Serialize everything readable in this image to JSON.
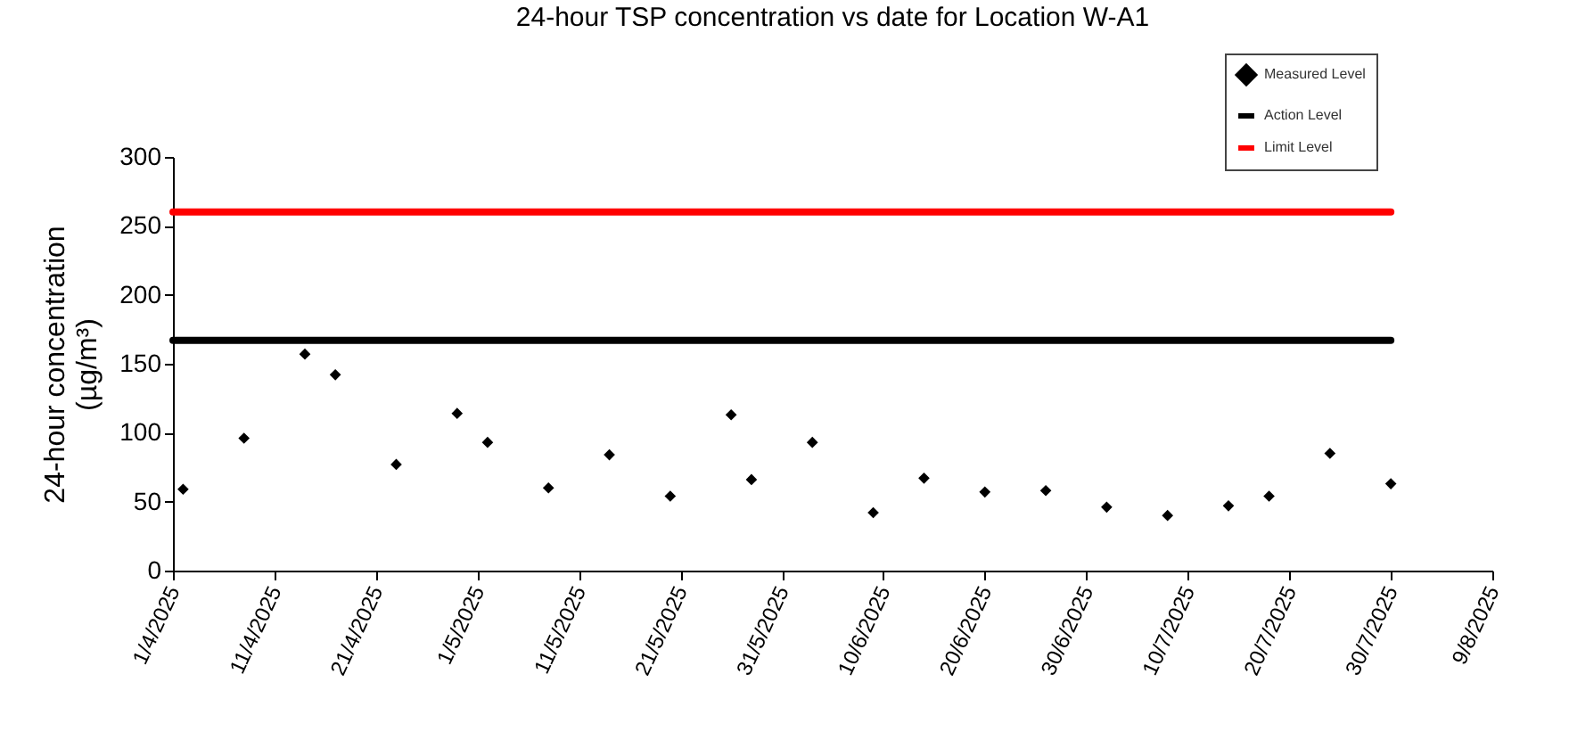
{
  "chart_data": {
    "type": "scatter",
    "title": "24-hour TSP concentration vs date for Location W-A1",
    "ylabel": "24-hour concentration\n(µg/m³)",
    "xlim": [
      "2025-04-01",
      "2025-08-09"
    ],
    "xticks": [
      {
        "value": "2025-04-01",
        "label": "1/4/2025"
      },
      {
        "value": "2025-04-11",
        "label": "11/4/2025"
      },
      {
        "value": "2025-04-21",
        "label": "21/4/2025"
      },
      {
        "value": "2025-05-01",
        "label": "1/5/2025"
      },
      {
        "value": "2025-05-11",
        "label": "11/5/2025"
      },
      {
        "value": "2025-05-21",
        "label": "21/5/2025"
      },
      {
        "value": "2025-05-31",
        "label": "31/5/2025"
      },
      {
        "value": "2025-06-10",
        "label": "10/6/2025"
      },
      {
        "value": "2025-06-20",
        "label": "20/6/2025"
      },
      {
        "value": "2025-06-30",
        "label": "30/6/2025"
      },
      {
        "value": "2025-07-10",
        "label": "10/7/2025"
      },
      {
        "value": "2025-07-20",
        "label": "20/7/2025"
      },
      {
        "value": "2025-07-30",
        "label": "30/7/2025"
      },
      {
        "value": "2025-08-09",
        "label": "9/8/2025"
      }
    ],
    "ylim": [
      0,
      300
    ],
    "yticks": [
      0,
      50,
      100,
      150,
      200,
      250,
      300
    ],
    "grid": false,
    "legend": "top right",
    "series": [
      {
        "name": "Measured Level",
        "marker": "diamond",
        "color": "#000000",
        "x": [
          "2025-04-02",
          "2025-04-08",
          "2025-04-14",
          "2025-04-17",
          "2025-04-23",
          "2025-04-29",
          "2025-05-02",
          "2025-05-08",
          "2025-05-14",
          "2025-05-20",
          "2025-05-26",
          "2025-05-28",
          "2025-06-03",
          "2025-06-09",
          "2025-06-14",
          "2025-06-20",
          "2025-06-26",
          "2025-07-02",
          "2025-07-08",
          "2025-07-14",
          "2025-07-18",
          "2025-07-24",
          "2025-07-30"
        ],
        "values": [
          59,
          96,
          157,
          142,
          77,
          114,
          93,
          60,
          84,
          54,
          113,
          66,
          93,
          42,
          67,
          57,
          58,
          46,
          40,
          47,
          54,
          85,
          63
        ]
      },
      {
        "name": "Action Level",
        "type": "line",
        "color": "#000000",
        "x": [
          "2025-04-01",
          "2025-07-30"
        ],
        "values": [
          167,
          167
        ]
      },
      {
        "name": "Limit Level",
        "type": "line",
        "color": "#ff0000",
        "x": [
          "2025-04-01",
          "2025-07-30"
        ],
        "values": [
          260,
          260
        ]
      }
    ]
  }
}
